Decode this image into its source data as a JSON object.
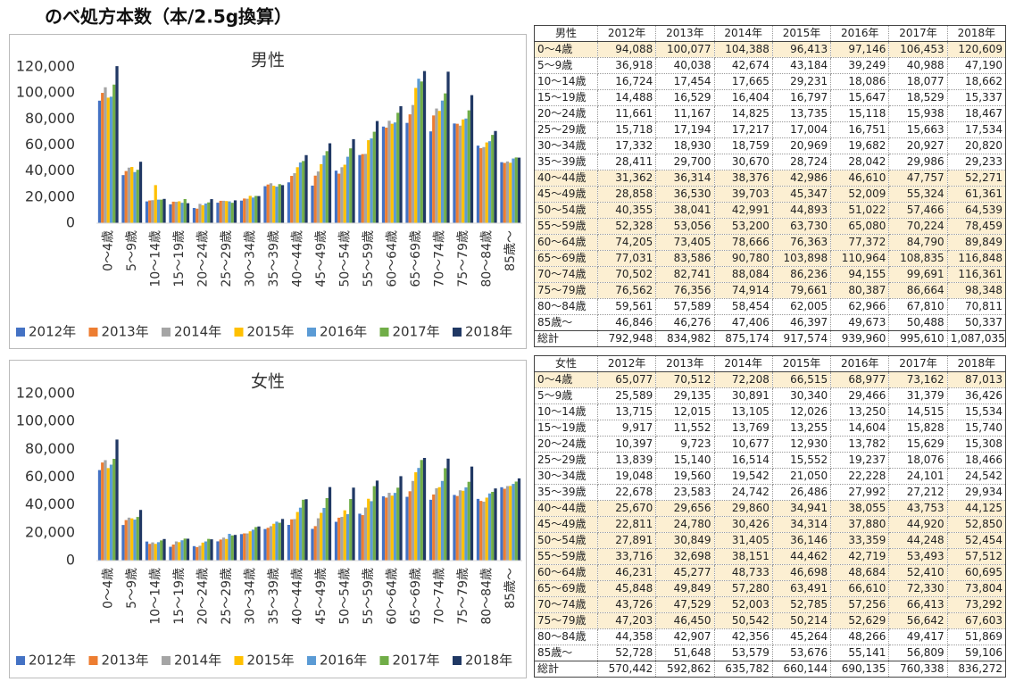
{
  "title": "のべ処方本数（本/2.5g換算）",
  "chart_data": [
    {
      "type": "bar",
      "title": "男性",
      "categories": [
        "0～4歳",
        "5～9歳",
        "10～14歳",
        "15～19歳",
        "20～24歳",
        "25～29歳",
        "30～34歳",
        "35～39歳",
        "40～44歳",
        "45～49歳",
        "50～54歳",
        "55～59歳",
        "60～64歳",
        "65～69歳",
        "70～74歳",
        "75～79歳",
        "80～84歳",
        "85歳～"
      ],
      "ylim": [
        0,
        120000
      ],
      "yticks": [
        0,
        {
          "value": 20000,
          "label": "20,000"
        },
        {
          "value": 40000,
          "label": "40,000"
        },
        {
          "value": 60000,
          "label": "60,000"
        },
        {
          "value": 80000,
          "label": "80,000"
        },
        {
          "value": 100000,
          "label": "100,000"
        },
        {
          "value": 120000,
          "label": "120,000"
        }
      ],
      "legend": "bottom",
      "series": [
        {
          "name": "2012年",
          "color": "#4472c4",
          "values": [
            94088,
            36918,
            16724,
            14488,
            11661,
            15718,
            17332,
            28411,
            31362,
            28858,
            40355,
            52328,
            74205,
            77031,
            70502,
            76562,
            59561,
            46846
          ]
        },
        {
          "name": "2013年",
          "color": "#ed7d31",
          "values": [
            100077,
            40038,
            17454,
            16529,
            11167,
            17194,
            18930,
            29700,
            36314,
            36530,
            38041,
            53056,
            73405,
            83586,
            82741,
            76356,
            57589,
            46276
          ]
        },
        {
          "name": "2014年",
          "color": "#a5a5a5",
          "values": [
            104388,
            42674,
            17665,
            16404,
            14825,
            17217,
            18759,
            30670,
            38376,
            39703,
            42991,
            53200,
            78666,
            90780,
            88084,
            74914,
            58454,
            47406
          ]
        },
        {
          "name": "2015年",
          "color": "#ffc000",
          "values": [
            96413,
            43184,
            29231,
            16797,
            13735,
            17004,
            20969,
            28724,
            42986,
            45347,
            44893,
            63730,
            76363,
            103898,
            86236,
            79661,
            62005,
            46397
          ]
        },
        {
          "name": "2016年",
          "color": "#5b9bd5",
          "values": [
            97146,
            39249,
            18086,
            15647,
            15118,
            16751,
            19682,
            28042,
            46610,
            52009,
            51022,
            65080,
            77372,
            110964,
            94155,
            80387,
            62966,
            49673
          ]
        },
        {
          "name": "2017年",
          "color": "#70ad47",
          "values": [
            106453,
            40988,
            18077,
            18529,
            15938,
            15663,
            20927,
            29986,
            47757,
            55324,
            57466,
            70224,
            84790,
            108835,
            99691,
            86664,
            67810,
            50488
          ]
        },
        {
          "name": "2018年",
          "color": "#203864",
          "values": [
            120609,
            47190,
            18662,
            15337,
            18467,
            17534,
            20820,
            29233,
            52271,
            61361,
            64539,
            78459,
            89849,
            116848,
            116361,
            98348,
            70811,
            50337
          ]
        }
      ]
    },
    {
      "type": "bar",
      "title": "女性",
      "categories": [
        "0～4歳",
        "5～9歳",
        "10～14歳",
        "15～19歳",
        "20～24歳",
        "25～29歳",
        "30～34歳",
        "35～39歳",
        "40～44歳",
        "45～49歳",
        "50～54歳",
        "55～59歳",
        "60～64歳",
        "65～69歳",
        "70～74歳",
        "75～79歳",
        "80～84歳",
        "85歳～"
      ],
      "ylim": [
        0,
        120000
      ],
      "yticks": [
        0,
        {
          "value": 20000,
          "label": "20,000"
        },
        {
          "value": 40000,
          "label": "40,000"
        },
        {
          "value": 60000,
          "label": "60,000"
        },
        {
          "value": 80000,
          "label": "80,000"
        },
        {
          "value": 100000,
          "label": "100,000"
        },
        {
          "value": 120000,
          "label": "120,000"
        }
      ],
      "legend": "bottom",
      "series": [
        {
          "name": "2012年",
          "color": "#4472c4",
          "values": [
            65077,
            25589,
            13715,
            9917,
            10397,
            13839,
            19048,
            22678,
            25670,
            22811,
            27891,
            33716,
            46231,
            45848,
            43726,
            47203,
            44358,
            52728
          ]
        },
        {
          "name": "2013年",
          "color": "#ed7d31",
          "values": [
            70512,
            29135,
            12015,
            11552,
            9723,
            15140,
            19560,
            23583,
            29656,
            24780,
            30849,
            32698,
            45277,
            49849,
            47529,
            46450,
            42907,
            51648
          ]
        },
        {
          "name": "2014年",
          "color": "#a5a5a5",
          "values": [
            72208,
            30891,
            13105,
            13769,
            10677,
            16514,
            19542,
            24742,
            29860,
            30426,
            31405,
            38151,
            48733,
            57280,
            52003,
            50542,
            42356,
            53579
          ]
        },
        {
          "name": "2015年",
          "color": "#ffc000",
          "values": [
            66515,
            30340,
            12026,
            13255,
            12930,
            15552,
            21050,
            26486,
            34941,
            34314,
            36146,
            44462,
            46698,
            63491,
            52785,
            50214,
            45264,
            53676
          ]
        },
        {
          "name": "2016年",
          "color": "#5b9bd5",
          "values": [
            68977,
            29466,
            13250,
            14604,
            13782,
            19237,
            22228,
            27992,
            38055,
            37880,
            33359,
            42719,
            48684,
            66610,
            57256,
            52629,
            48266,
            55141
          ]
        },
        {
          "name": "2017年",
          "color": "#70ad47",
          "values": [
            73162,
            31379,
            14515,
            15828,
            15629,
            18076,
            24101,
            27212,
            43753,
            44920,
            44248,
            53493,
            52410,
            72330,
            66413,
            56642,
            49417,
            56809
          ]
        },
        {
          "name": "2018年",
          "color": "#203864",
          "values": [
            87013,
            36426,
            15534,
            15740,
            15308,
            18466,
            24542,
            29934,
            44125,
            52850,
            52454,
            57512,
            60695,
            73804,
            73292,
            67603,
            51869,
            59106
          ]
        }
      ]
    }
  ],
  "tables": [
    {
      "header": [
        "男性",
        "2012年",
        "2013年",
        "2014年",
        "2015年",
        "2016年",
        "2017年",
        "2018年"
      ],
      "rows": [
        [
          "0～4歳",
          "94,088",
          "100,077",
          "104,388",
          "96,413",
          "97,146",
          "106,453",
          "120,609"
        ],
        [
          "5～9歳",
          "36,918",
          "40,038",
          "42,674",
          "43,184",
          "39,249",
          "40,988",
          "47,190"
        ],
        [
          "10～14歳",
          "16,724",
          "17,454",
          "17,665",
          "29,231",
          "18,086",
          "18,077",
          "18,662"
        ],
        [
          "15～19歳",
          "14,488",
          "16,529",
          "16,404",
          "16,797",
          "15,647",
          "18,529",
          "15,337"
        ],
        [
          "20～24歳",
          "11,661",
          "11,167",
          "14,825",
          "13,735",
          "15,118",
          "15,938",
          "18,467"
        ],
        [
          "25～29歳",
          "15,718",
          "17,194",
          "17,217",
          "17,004",
          "16,751",
          "15,663",
          "17,534"
        ],
        [
          "30～34歳",
          "17,332",
          "18,930",
          "18,759",
          "20,969",
          "19,682",
          "20,927",
          "20,820"
        ],
        [
          "35～39歳",
          "28,411",
          "29,700",
          "30,670",
          "28,724",
          "28,042",
          "29,986",
          "29,233"
        ],
        [
          "40～44歳",
          "31,362",
          "36,314",
          "38,376",
          "42,986",
          "46,610",
          "47,757",
          "52,271"
        ],
        [
          "45～49歳",
          "28,858",
          "36,530",
          "39,703",
          "45,347",
          "52,009",
          "55,324",
          "61,361"
        ],
        [
          "50～54歳",
          "40,355",
          "38,041",
          "42,991",
          "44,893",
          "51,022",
          "57,466",
          "64,539"
        ],
        [
          "55～59歳",
          "52,328",
          "53,056",
          "53,200",
          "63,730",
          "65,080",
          "70,224",
          "78,459"
        ],
        [
          "60～64歳",
          "74,205",
          "73,405",
          "78,666",
          "76,363",
          "77,372",
          "84,790",
          "89,849"
        ],
        [
          "65～69歳",
          "77,031",
          "83,586",
          "90,780",
          "103,898",
          "110,964",
          "108,835",
          "116,848"
        ],
        [
          "70～74歳",
          "70,502",
          "82,741",
          "88,084",
          "86,236",
          "94,155",
          "99,691",
          "116,361"
        ],
        [
          "75～79歳",
          "76,562",
          "76,356",
          "74,914",
          "79,661",
          "80,387",
          "86,664",
          "98,348"
        ],
        [
          "80～84歳",
          "59,561",
          "57,589",
          "58,454",
          "62,005",
          "62,966",
          "67,810",
          "70,811"
        ],
        [
          "85歳～",
          "46,846",
          "46,276",
          "47,406",
          "46,397",
          "49,673",
          "50,488",
          "50,337"
        ],
        [
          "総計",
          "792,948",
          "834,982",
          "875,174",
          "917,574",
          "939,960",
          "995,610",
          "1,087,035"
        ]
      ]
    },
    {
      "header": [
        "女性",
        "2012年",
        "2013年",
        "2014年",
        "2015年",
        "2016年",
        "2017年",
        "2018年"
      ],
      "rows": [
        [
          "0～4歳",
          "65,077",
          "70,512",
          "72,208",
          "66,515",
          "68,977",
          "73,162",
          "87,013"
        ],
        [
          "5～9歳",
          "25,589",
          "29,135",
          "30,891",
          "30,340",
          "29,466",
          "31,379",
          "36,426"
        ],
        [
          "10～14歳",
          "13,715",
          "12,015",
          "13,105",
          "12,026",
          "13,250",
          "14,515",
          "15,534"
        ],
        [
          "15～19歳",
          "9,917",
          "11,552",
          "13,769",
          "13,255",
          "14,604",
          "15,828",
          "15,740"
        ],
        [
          "20～24歳",
          "10,397",
          "9,723",
          "10,677",
          "12,930",
          "13,782",
          "15,629",
          "15,308"
        ],
        [
          "25～29歳",
          "13,839",
          "15,140",
          "16,514",
          "15,552",
          "19,237",
          "18,076",
          "18,466"
        ],
        [
          "30～34歳",
          "19,048",
          "19,560",
          "19,542",
          "21,050",
          "22,228",
          "24,101",
          "24,542"
        ],
        [
          "35～39歳",
          "22,678",
          "23,583",
          "24,742",
          "26,486",
          "27,992",
          "27,212",
          "29,934"
        ],
        [
          "40～44歳",
          "25,670",
          "29,656",
          "29,860",
          "34,941",
          "38,055",
          "43,753",
          "44,125"
        ],
        [
          "45～49歳",
          "22,811",
          "24,780",
          "30,426",
          "34,314",
          "37,880",
          "44,920",
          "52,850"
        ],
        [
          "50～54歳",
          "27,891",
          "30,849",
          "31,405",
          "36,146",
          "33,359",
          "44,248",
          "52,454"
        ],
        [
          "55～59歳",
          "33,716",
          "32,698",
          "38,151",
          "44,462",
          "42,719",
          "53,493",
          "57,512"
        ],
        [
          "60～64歳",
          "46,231",
          "45,277",
          "48,733",
          "46,698",
          "48,684",
          "52,410",
          "60,695"
        ],
        [
          "65～69歳",
          "45,848",
          "49,849",
          "57,280",
          "63,491",
          "66,610",
          "72,330",
          "73,804"
        ],
        [
          "70～74歳",
          "43,726",
          "47,529",
          "52,003",
          "52,785",
          "57,256",
          "66,413",
          "73,292"
        ],
        [
          "75～79歳",
          "47,203",
          "46,450",
          "50,542",
          "50,214",
          "52,629",
          "56,642",
          "67,603"
        ],
        [
          "80～84歳",
          "44,358",
          "42,907",
          "42,356",
          "45,264",
          "48,266",
          "49,417",
          "51,869"
        ],
        [
          "85歳～",
          "52,728",
          "51,648",
          "53,579",
          "53,676",
          "55,141",
          "56,809",
          "59,106"
        ],
        [
          "総計",
          "570,442",
          "592,862",
          "635,782",
          "660,144",
          "690,135",
          "760,338",
          "836,272"
        ]
      ]
    }
  ]
}
